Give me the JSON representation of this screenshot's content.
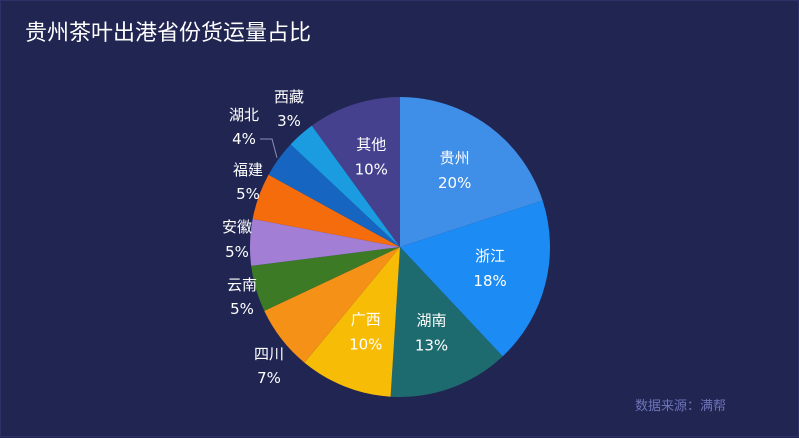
{
  "header": {
    "title": "贵州茶叶出港省份货运量占比"
  },
  "footer": {
    "source": "数据来源：满帮"
  },
  "chart_data": {
    "type": "pie",
    "title": "贵州茶叶出港省份货运量占比",
    "slices": [
      {
        "label": "贵州",
        "value": 20,
        "display": "20%",
        "color": "#3f8ee8",
        "label_position": "inside"
      },
      {
        "label": "浙江",
        "value": 18,
        "display": "18%",
        "color": "#1c8bf3",
        "label_position": "inside"
      },
      {
        "label": "湖南",
        "value": 13,
        "display": "13%",
        "color": "#1e6b6f",
        "label_position": "inside"
      },
      {
        "label": "广西",
        "value": 10,
        "display": "10%",
        "color": "#f7bd06",
        "label_position": "inside"
      },
      {
        "label": "四川",
        "value": 7,
        "display": "7%",
        "color": "#f59117",
        "label_position": "outside"
      },
      {
        "label": "云南",
        "value": 5,
        "display": "5%",
        "color": "#3c7a26",
        "label_position": "outside"
      },
      {
        "label": "安徽",
        "value": 5,
        "display": "5%",
        "color": "#a27fd5",
        "label_position": "outside"
      },
      {
        "label": "福建",
        "value": 5,
        "display": "5%",
        "color": "#f56c0c",
        "label_position": "outside"
      },
      {
        "label": "湖北",
        "value": 4,
        "display": "4%",
        "color": "#1665c0",
        "label_position": "outside"
      },
      {
        "label": "西藏",
        "value": 3,
        "display": "3%",
        "color": "#1b9be0",
        "label_position": "outside"
      },
      {
        "label": "其他",
        "value": 10,
        "display": "10%",
        "color": "#45418e",
        "label_position": "inside"
      }
    ],
    "start_angle": "12 o'clock",
    "direction": "clockwise"
  }
}
